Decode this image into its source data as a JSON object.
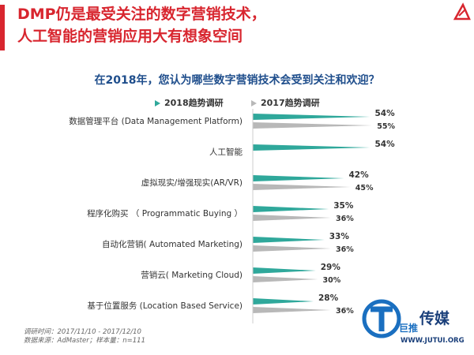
{
  "slide": {
    "title_lines": [
      "DMP仍是最受关注的数字营销技术，",
      "人工智能的营销应用大有想象空间"
    ],
    "question": "在2018年，您认为哪些数字营销技术会受到关注和欢迎？",
    "footer_lines": [
      "调研时间：2017/11/10 - 2017/12/10",
      "数据来源：AdMaster；样本量：n=111"
    ],
    "watermark": {
      "brand": "巨推",
      "name": "传媒",
      "url": "WWW.JUTUI.ORG"
    }
  },
  "colors": {
    "accent": "#d8262f",
    "series_2018": "#2fa89b",
    "series_2017": "#b8b8b8",
    "question": "#1f4e8c"
  },
  "chart_data": {
    "type": "bar",
    "orientation": "horizontal",
    "categories": [
      "数据管理平台 (Data Management Platform)",
      "人工智能",
      "虚拟现实/增强现实(AR/VR)",
      "程序化购买 （ Programmatic Buying ）",
      "自动化营销( Automated Marketing)",
      "营销云( Marketing Cloud)",
      "基于位置服务 (Location Based Service)"
    ],
    "series": [
      {
        "name": "2018趋势调研",
        "values": [
          54,
          54,
          42,
          35,
          33,
          29,
          28
        ],
        "labels": [
          "54%",
          "54%",
          "42%",
          "35%",
          "33%",
          "29%",
          "28%"
        ]
      },
      {
        "name": "2017趋势调研",
        "values": [
          55,
          null,
          45,
          36,
          36,
          30,
          36
        ],
        "labels": [
          "55%",
          "",
          "45%",
          "36%",
          "36%",
          "30%",
          "36%"
        ]
      }
    ],
    "xlim": [
      0,
      60
    ],
    "legend_position": "top",
    "grid": false
  }
}
